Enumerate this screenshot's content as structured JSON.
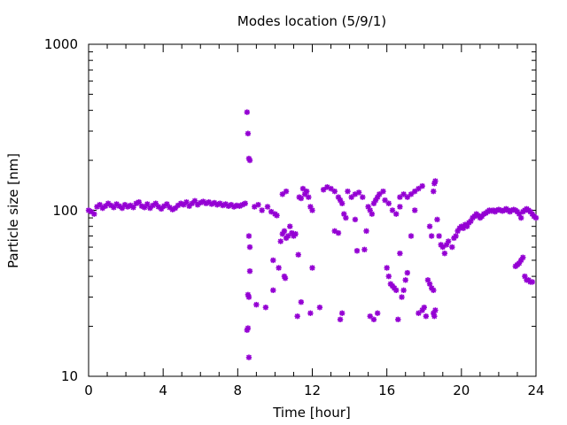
{
  "chart_data": {
    "type": "scatter",
    "title": "Modes location (5/9/1)",
    "xlabel": "Time [hour]",
    "ylabel": "Particle size [nm]",
    "xlim": [
      0,
      24
    ],
    "ylim": [
      10,
      1000
    ],
    "yscale": "log",
    "xticks": [
      "0",
      "4",
      "8",
      "12",
      "16",
      "20",
      "24"
    ],
    "yticks": [
      "10",
      "100",
      "1000"
    ],
    "grid": false,
    "legend": "none",
    "marker_color": "#9400d3",
    "series": [
      {
        "values": [
          [
            0.0,
            100
          ],
          [
            0.15,
            98
          ],
          [
            0.3,
            95
          ],
          [
            0.45,
            105
          ],
          [
            0.6,
            108
          ],
          [
            0.75,
            103
          ],
          [
            0.9,
            106
          ],
          [
            1.05,
            110
          ],
          [
            1.2,
            107
          ],
          [
            1.35,
            104
          ],
          [
            1.5,
            109
          ],
          [
            1.65,
            106
          ],
          [
            1.8,
            103
          ],
          [
            1.95,
            108
          ],
          [
            2.1,
            105
          ],
          [
            2.25,
            107
          ],
          [
            2.4,
            104
          ],
          [
            2.55,
            110
          ],
          [
            2.7,
            112
          ],
          [
            2.85,
            106
          ],
          [
            3.0,
            104
          ],
          [
            3.15,
            109
          ],
          [
            3.3,
            103
          ],
          [
            3.45,
            107
          ],
          [
            3.6,
            110
          ],
          [
            3.75,
            105
          ],
          [
            3.9,
            102
          ],
          [
            4.05,
            106
          ],
          [
            4.2,
            109
          ],
          [
            4.35,
            104
          ],
          [
            4.5,
            101
          ],
          [
            4.65,
            103
          ],
          [
            4.8,
            107
          ],
          [
            4.95,
            110
          ],
          [
            5.1,
            108
          ],
          [
            5.25,
            112
          ],
          [
            5.4,
            106
          ],
          [
            5.55,
            110
          ],
          [
            5.7,
            114
          ],
          [
            5.85,
            108
          ],
          [
            6.0,
            111
          ],
          [
            6.15,
            113
          ],
          [
            6.3,
            110
          ],
          [
            6.45,
            112
          ],
          [
            6.6,
            109
          ],
          [
            6.75,
            111
          ],
          [
            6.9,
            108
          ],
          [
            7.05,
            110
          ],
          [
            7.2,
            107
          ],
          [
            7.35,
            109
          ],
          [
            7.5,
            106
          ],
          [
            7.65,
            108
          ],
          [
            7.8,
            105
          ],
          [
            7.95,
            107
          ],
          [
            8.1,
            106
          ],
          [
            8.25,
            108
          ],
          [
            8.4,
            110
          ],
          [
            8.5,
            390
          ],
          [
            8.55,
            290
          ],
          [
            8.6,
            205
          ],
          [
            8.65,
            200
          ],
          [
            8.5,
            19
          ],
          [
            8.55,
            19.5
          ],
          [
            8.6,
            13
          ],
          [
            8.55,
            31
          ],
          [
            8.6,
            30
          ],
          [
            8.65,
            43
          ],
          [
            8.6,
            70
          ],
          [
            8.65,
            60
          ],
          [
            8.9,
            105
          ],
          [
            9.0,
            27
          ],
          [
            9.1,
            108
          ],
          [
            9.3,
            100
          ],
          [
            9.5,
            26
          ],
          [
            9.6,
            105
          ],
          [
            9.8,
            98
          ],
          [
            9.9,
            50
          ],
          [
            10.0,
            95
          ],
          [
            10.1,
            93
          ],
          [
            9.9,
            33
          ],
          [
            10.2,
            45
          ],
          [
            10.3,
            65
          ],
          [
            10.4,
            72
          ],
          [
            10.5,
            75
          ],
          [
            10.5,
            40
          ],
          [
            10.55,
            39
          ],
          [
            10.6,
            68
          ],
          [
            10.7,
            70
          ],
          [
            10.8,
            80
          ],
          [
            10.9,
            73
          ],
          [
            11.0,
            70
          ],
          [
            11.1,
            72
          ],
          [
            10.4,
            125
          ],
          [
            10.6,
            130
          ],
          [
            11.3,
            120
          ],
          [
            11.4,
            118
          ],
          [
            11.5,
            135
          ],
          [
            11.6,
            125
          ],
          [
            11.7,
            130
          ],
          [
            11.8,
            120
          ],
          [
            11.9,
            105
          ],
          [
            12.0,
            100
          ],
          [
            11.2,
            23
          ],
          [
            11.4,
            28
          ],
          [
            11.25,
            54
          ],
          [
            11.9,
            24
          ],
          [
            12.4,
            26
          ],
          [
            12.0,
            45
          ],
          [
            12.6,
            133
          ],
          [
            12.8,
            138
          ],
          [
            13.0,
            135
          ],
          [
            13.2,
            130
          ],
          [
            13.4,
            120
          ],
          [
            13.5,
            115
          ],
          [
            13.6,
            110
          ],
          [
            13.7,
            95
          ],
          [
            13.8,
            90
          ],
          [
            13.2,
            75
          ],
          [
            13.4,
            73
          ],
          [
            13.5,
            22
          ],
          [
            13.6,
            24
          ],
          [
            13.9,
            130
          ],
          [
            14.1,
            120
          ],
          [
            14.3,
            125
          ],
          [
            14.5,
            128
          ],
          [
            14.7,
            120
          ],
          [
            14.3,
            88
          ],
          [
            14.4,
            57
          ],
          [
            14.8,
            58
          ],
          [
            14.9,
            75
          ],
          [
            15.0,
            105
          ],
          [
            15.1,
            100
          ],
          [
            15.2,
            95
          ],
          [
            15.3,
            110
          ],
          [
            15.4,
            115
          ],
          [
            15.5,
            120
          ],
          [
            15.6,
            125
          ],
          [
            15.8,
            130
          ],
          [
            15.1,
            23
          ],
          [
            15.3,
            22
          ],
          [
            15.5,
            24
          ],
          [
            15.9,
            115
          ],
          [
            16.1,
            110
          ],
          [
            16.3,
            100
          ],
          [
            16.5,
            95
          ],
          [
            16.7,
            105
          ],
          [
            16.0,
            45
          ],
          [
            16.1,
            40
          ],
          [
            16.2,
            36
          ],
          [
            16.3,
            35
          ],
          [
            16.4,
            34
          ],
          [
            16.5,
            33
          ],
          [
            16.6,
            22
          ],
          [
            16.7,
            55
          ],
          [
            16.8,
            30
          ],
          [
            16.9,
            33
          ],
          [
            17.0,
            38
          ],
          [
            17.1,
            42
          ],
          [
            16.7,
            120
          ],
          [
            16.9,
            125
          ],
          [
            17.1,
            120
          ],
          [
            17.3,
            125
          ],
          [
            17.5,
            130
          ],
          [
            17.7,
            135
          ],
          [
            17.9,
            140
          ],
          [
            17.3,
            70
          ],
          [
            17.5,
            100
          ],
          [
            17.7,
            24
          ],
          [
            17.9,
            25
          ],
          [
            18.0,
            26
          ],
          [
            18.1,
            23
          ],
          [
            18.2,
            38
          ],
          [
            18.3,
            36
          ],
          [
            18.4,
            34
          ],
          [
            18.5,
            33
          ],
          [
            18.5,
            24
          ],
          [
            18.55,
            23
          ],
          [
            18.3,
            80
          ],
          [
            18.4,
            70
          ],
          [
            18.5,
            130
          ],
          [
            18.55,
            145
          ],
          [
            18.6,
            150
          ],
          [
            18.6,
            25
          ],
          [
            18.7,
            88
          ],
          [
            18.8,
            70
          ],
          [
            18.9,
            62
          ],
          [
            19.0,
            60
          ],
          [
            19.1,
            55
          ],
          [
            19.2,
            62
          ],
          [
            19.3,
            65
          ],
          [
            19.5,
            60
          ],
          [
            19.6,
            68
          ],
          [
            19.7,
            70
          ],
          [
            19.8,
            75
          ],
          [
            19.9,
            78
          ],
          [
            20.0,
            80
          ],
          [
            20.1,
            78
          ],
          [
            20.2,
            82
          ],
          [
            20.3,
            80
          ],
          [
            20.4,
            84
          ],
          [
            20.5,
            86
          ],
          [
            20.6,
            90
          ],
          [
            20.7,
            92
          ],
          [
            20.8,
            95
          ],
          [
            20.9,
            93
          ],
          [
            21.0,
            90
          ],
          [
            21.1,
            92
          ],
          [
            21.2,
            95
          ],
          [
            21.3,
            96
          ],
          [
            21.4,
            98
          ],
          [
            21.5,
            100
          ],
          [
            21.6,
            99
          ],
          [
            21.7,
            100
          ],
          [
            21.8,
            98
          ],
          [
            21.9,
            100
          ],
          [
            22.0,
            101
          ],
          [
            22.1,
            100
          ],
          [
            22.2,
            99
          ],
          [
            22.3,
            100
          ],
          [
            22.4,
            102
          ],
          [
            22.5,
            100
          ],
          [
            22.6,
            98
          ],
          [
            22.7,
            100
          ],
          [
            22.8,
            101
          ],
          [
            22.9,
            100
          ],
          [
            23.0,
            98
          ],
          [
            23.1,
            95
          ],
          [
            23.2,
            90
          ],
          [
            23.3,
            98
          ],
          [
            23.4,
            100
          ],
          [
            23.5,
            102
          ],
          [
            23.6,
            100
          ],
          [
            23.7,
            98
          ],
          [
            23.8,
            95
          ],
          [
            23.9,
            92
          ],
          [
            24.0,
            90
          ],
          [
            22.9,
            46
          ],
          [
            23.0,
            47
          ],
          [
            23.1,
            48
          ],
          [
            23.2,
            50
          ],
          [
            23.3,
            52
          ],
          [
            23.4,
            40
          ],
          [
            23.5,
            38
          ],
          [
            23.6,
            38
          ],
          [
            23.7,
            37
          ],
          [
            23.8,
            37
          ]
        ]
      }
    ]
  }
}
